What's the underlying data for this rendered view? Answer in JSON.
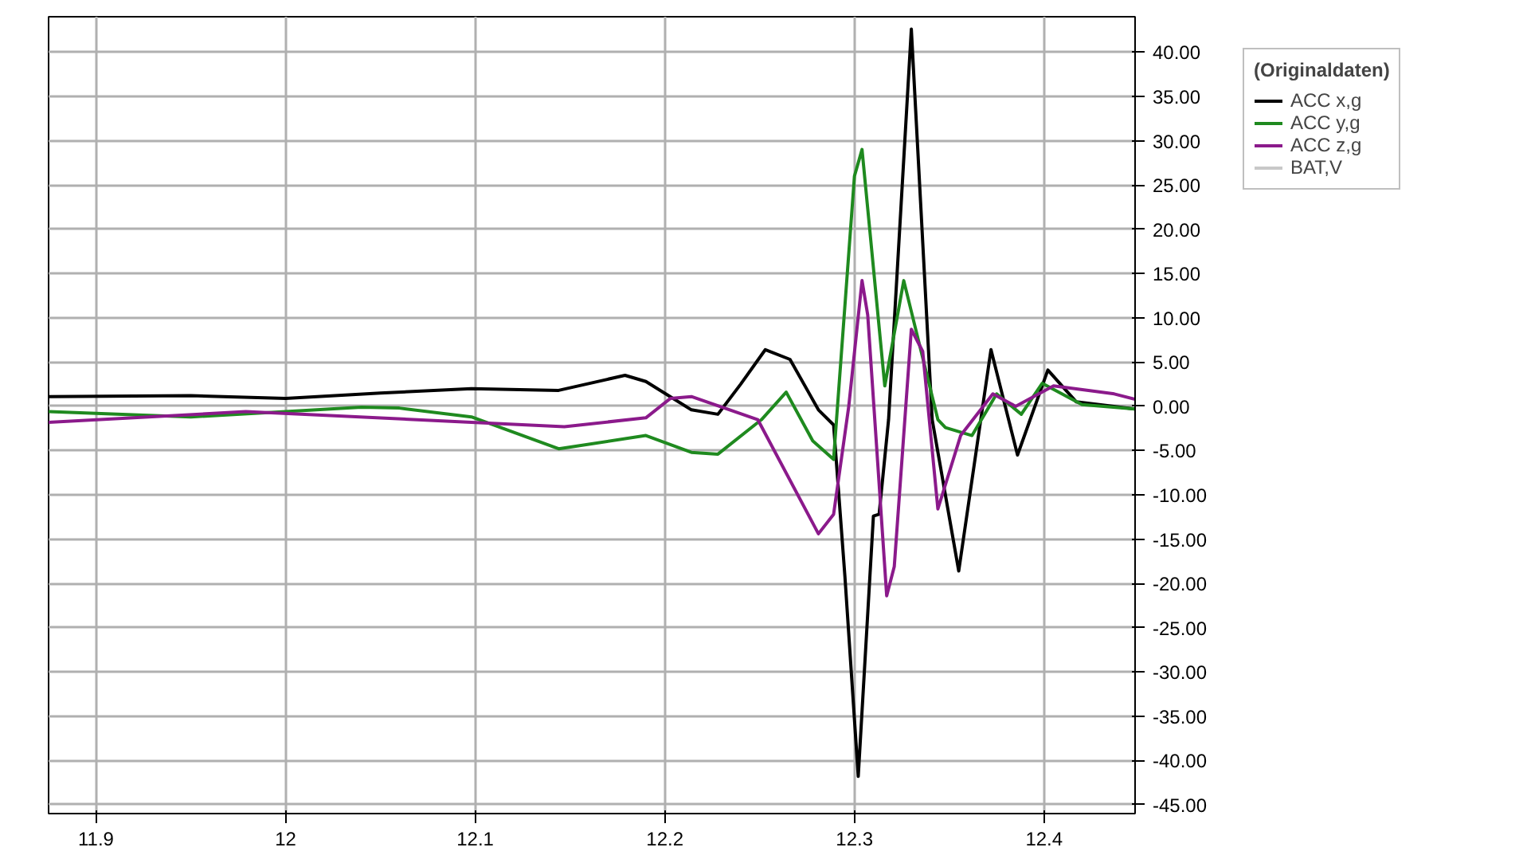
{
  "chart_data": {
    "type": "line",
    "legend_title": "(Originaldaten)",
    "legend": "top right",
    "grid": true,
    "line_style": "solid",
    "marker": "none",
    "xlim": [
      11.875,
      12.448
    ],
    "ylim": [
      -46,
      44
    ],
    "xticks": [
      11.9,
      12,
      12.1,
      12.2,
      12.3,
      12.4
    ],
    "yticks": [
      {
        "value": -45,
        "label": "-45.00"
      },
      {
        "value": -40,
        "label": "-40.00"
      },
      {
        "value": -35,
        "label": "-35.00"
      },
      {
        "value": -30,
        "label": "-30.00"
      },
      {
        "value": -25,
        "label": "-25.00"
      },
      {
        "value": -20,
        "label": "-20.00"
      },
      {
        "value": -15,
        "label": "-15.00"
      },
      {
        "value": -10,
        "label": "-10.00"
      },
      {
        "value": -5,
        "label": "-5.00"
      },
      {
        "value": 0,
        "label": "0.00"
      },
      {
        "value": 5,
        "label": "5.00"
      },
      {
        "value": 10,
        "label": "10.00"
      },
      {
        "value": 15,
        "label": "15.00"
      },
      {
        "value": 20,
        "label": "20.00"
      },
      {
        "value": 25,
        "label": "25.00"
      },
      {
        "value": 30,
        "label": "30.00"
      },
      {
        "value": 35,
        "label": "35.00"
      },
      {
        "value": 40,
        "label": "40.00"
      }
    ],
    "series": [
      {
        "name": "ACC x,g",
        "color": "#000000",
        "x": [
          11.875,
          11.95,
          12.0,
          12.05,
          12.098,
          12.144,
          12.179,
          12.19,
          12.214,
          12.228,
          12.24,
          12.253,
          12.266,
          12.281,
          12.289,
          12.295,
          12.302,
          12.31,
          12.313,
          12.318,
          12.33,
          12.341,
          12.355,
          12.372,
          12.386,
          12.402,
          12.417,
          12.448
        ],
        "values": [
          1.1,
          1.2,
          0.9,
          1.5,
          2.0,
          1.8,
          3.5,
          2.8,
          -0.4,
          -0.9,
          2.5,
          6.4,
          5.3,
          -0.4,
          -2.1,
          -19.3,
          -41.8,
          -12.4,
          -12.2,
          -1.5,
          42.6,
          -1.5,
          -18.6,
          6.4,
          -5.5,
          4.1,
          0.5,
          -0.3
        ]
      },
      {
        "name": "ACC y,g",
        "color": "#1f8a1f",
        "x": [
          11.875,
          11.95,
          12.0,
          12.04,
          12.06,
          12.098,
          12.144,
          12.19,
          12.214,
          12.228,
          12.251,
          12.264,
          12.278,
          12.289,
          12.3,
          12.304,
          12.316,
          12.326,
          12.344,
          12.348,
          12.362,
          12.375,
          12.388,
          12.399,
          12.42,
          12.448
        ],
        "values": [
          -0.6,
          -1.2,
          -0.6,
          -0.1,
          -0.2,
          -1.2,
          -4.8,
          -3.3,
          -5.2,
          -5.4,
          -1.5,
          1.6,
          -3.9,
          -6.0,
          26,
          29.0,
          2.3,
          14.2,
          -1.5,
          -2.4,
          -3.3,
          1.4,
          -0.9,
          2.6,
          0.2,
          -0.3
        ]
      },
      {
        "name": "ACC z,g",
        "color": "#8b1a8b",
        "x": [
          11.875,
          11.979,
          12.098,
          12.147,
          12.19,
          12.203,
          12.214,
          12.249,
          12.281,
          12.289,
          12.297,
          12.304,
          12.307,
          12.317,
          12.321,
          12.33,
          12.336,
          12.344,
          12.356,
          12.373,
          12.385,
          12.405,
          12.437,
          12.448
        ],
        "values": [
          -1.8,
          -0.6,
          -1.8,
          -2.3,
          -1.3,
          0.9,
          1.1,
          -1.5,
          -14.4,
          -12.2,
          0,
          14.2,
          10.3,
          -21.4,
          -18.1,
          8.7,
          6.2,
          -11.6,
          -3.3,
          1.4,
          0,
          2.3,
          1.4,
          0.8
        ]
      },
      {
        "name": "BAT,V",
        "color": "#c8c8c8"
      }
    ]
  }
}
